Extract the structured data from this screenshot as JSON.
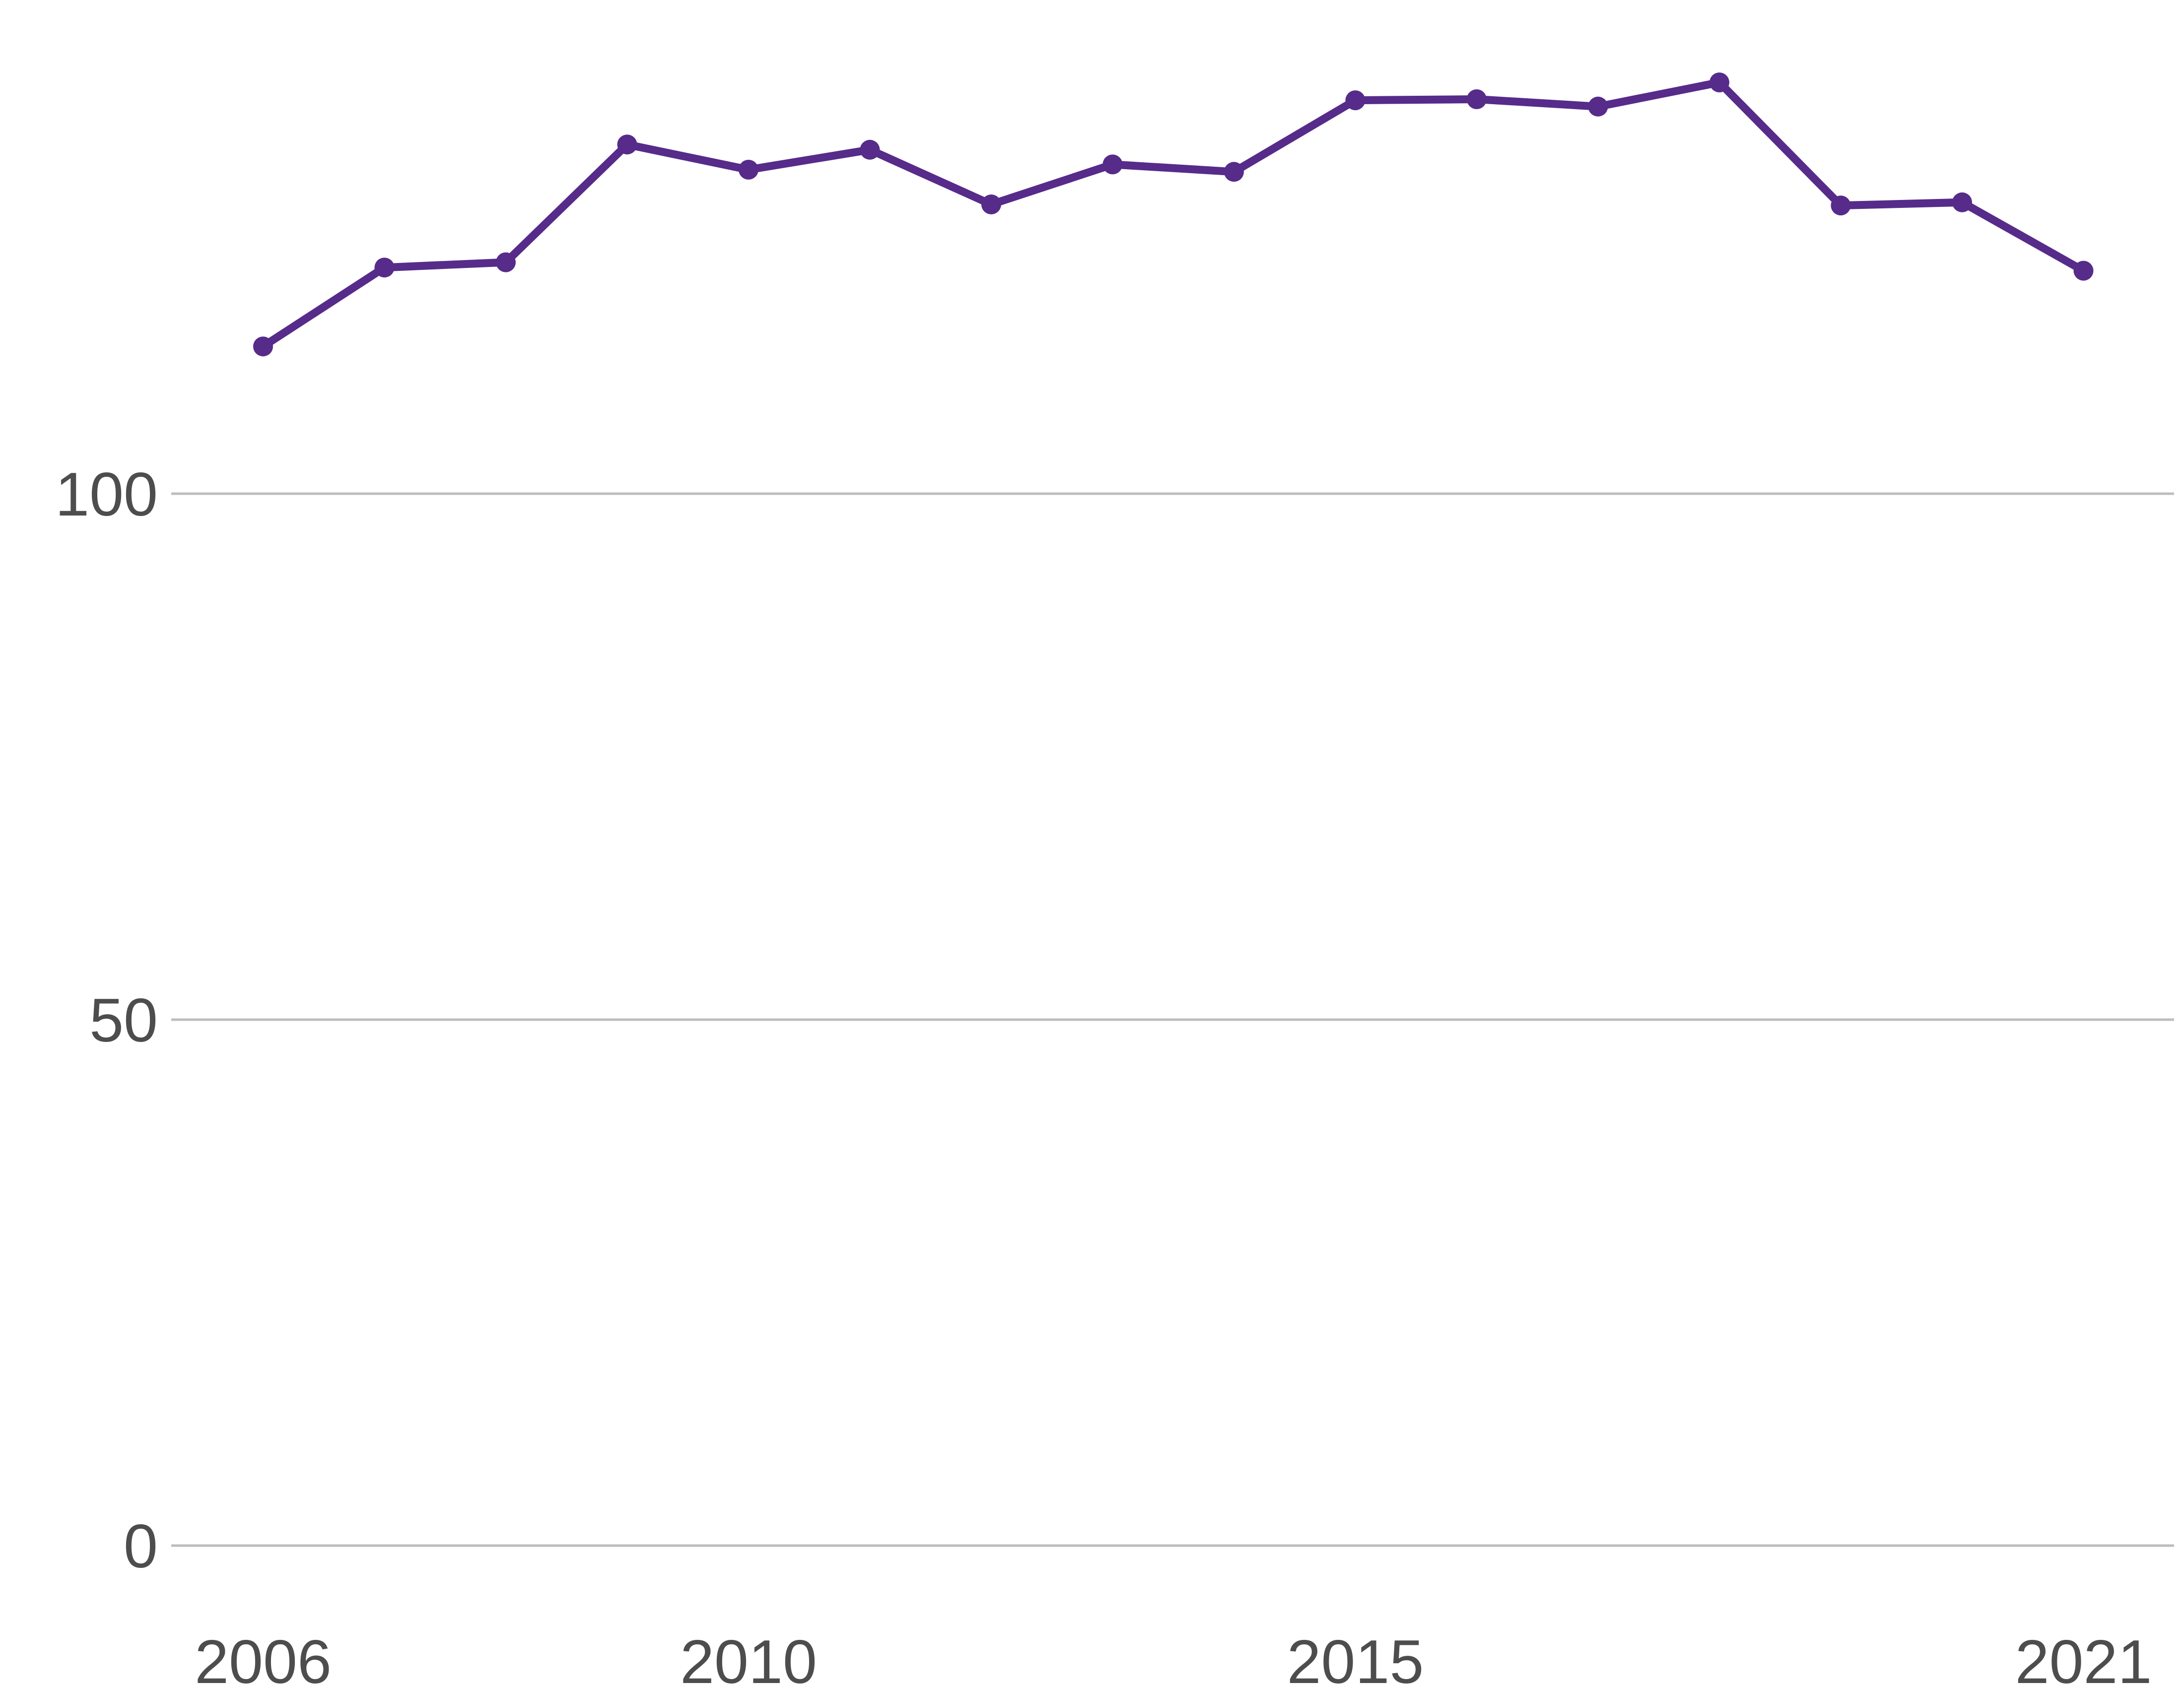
{
  "chart_data": {
    "type": "line",
    "title": "",
    "xlabel": "",
    "ylabel": "",
    "x": [
      2006,
      2007,
      2008,
      2009,
      2010,
      2011,
      2012,
      2013,
      2014,
      2015,
      2016,
      2017,
      2018,
      2019,
      2020,
      2021
    ],
    "series": [
      {
        "values": [
          114,
          121.5,
          122,
          133.2,
          130.8,
          132.7,
          127.5,
          131.3,
          130.6,
          137.4,
          137.5,
          136.8,
          139.1,
          127.4,
          127.7,
          121.2
        ],
        "color": "#562b8a"
      }
    ],
    "xlim": [
      2005.6,
      2021.5
    ],
    "ylim": [
      -2,
      145
    ],
    "x_ticks": [
      2006,
      2010,
      2015,
      2021
    ],
    "x_tick_labels": [
      "2006",
      "2010",
      "2015",
      "2021"
    ],
    "y_ticks": [
      0,
      50,
      100
    ],
    "y_tick_labels": [
      "0",
      "50",
      "100"
    ],
    "grid": {
      "horizontal": true,
      "vertical": false
    },
    "legend": "none",
    "colors": {
      "line": "#562b8a",
      "grid": "#bdbdbd",
      "tick_text": "#4d4d4d",
      "background": "#ffffff"
    }
  }
}
